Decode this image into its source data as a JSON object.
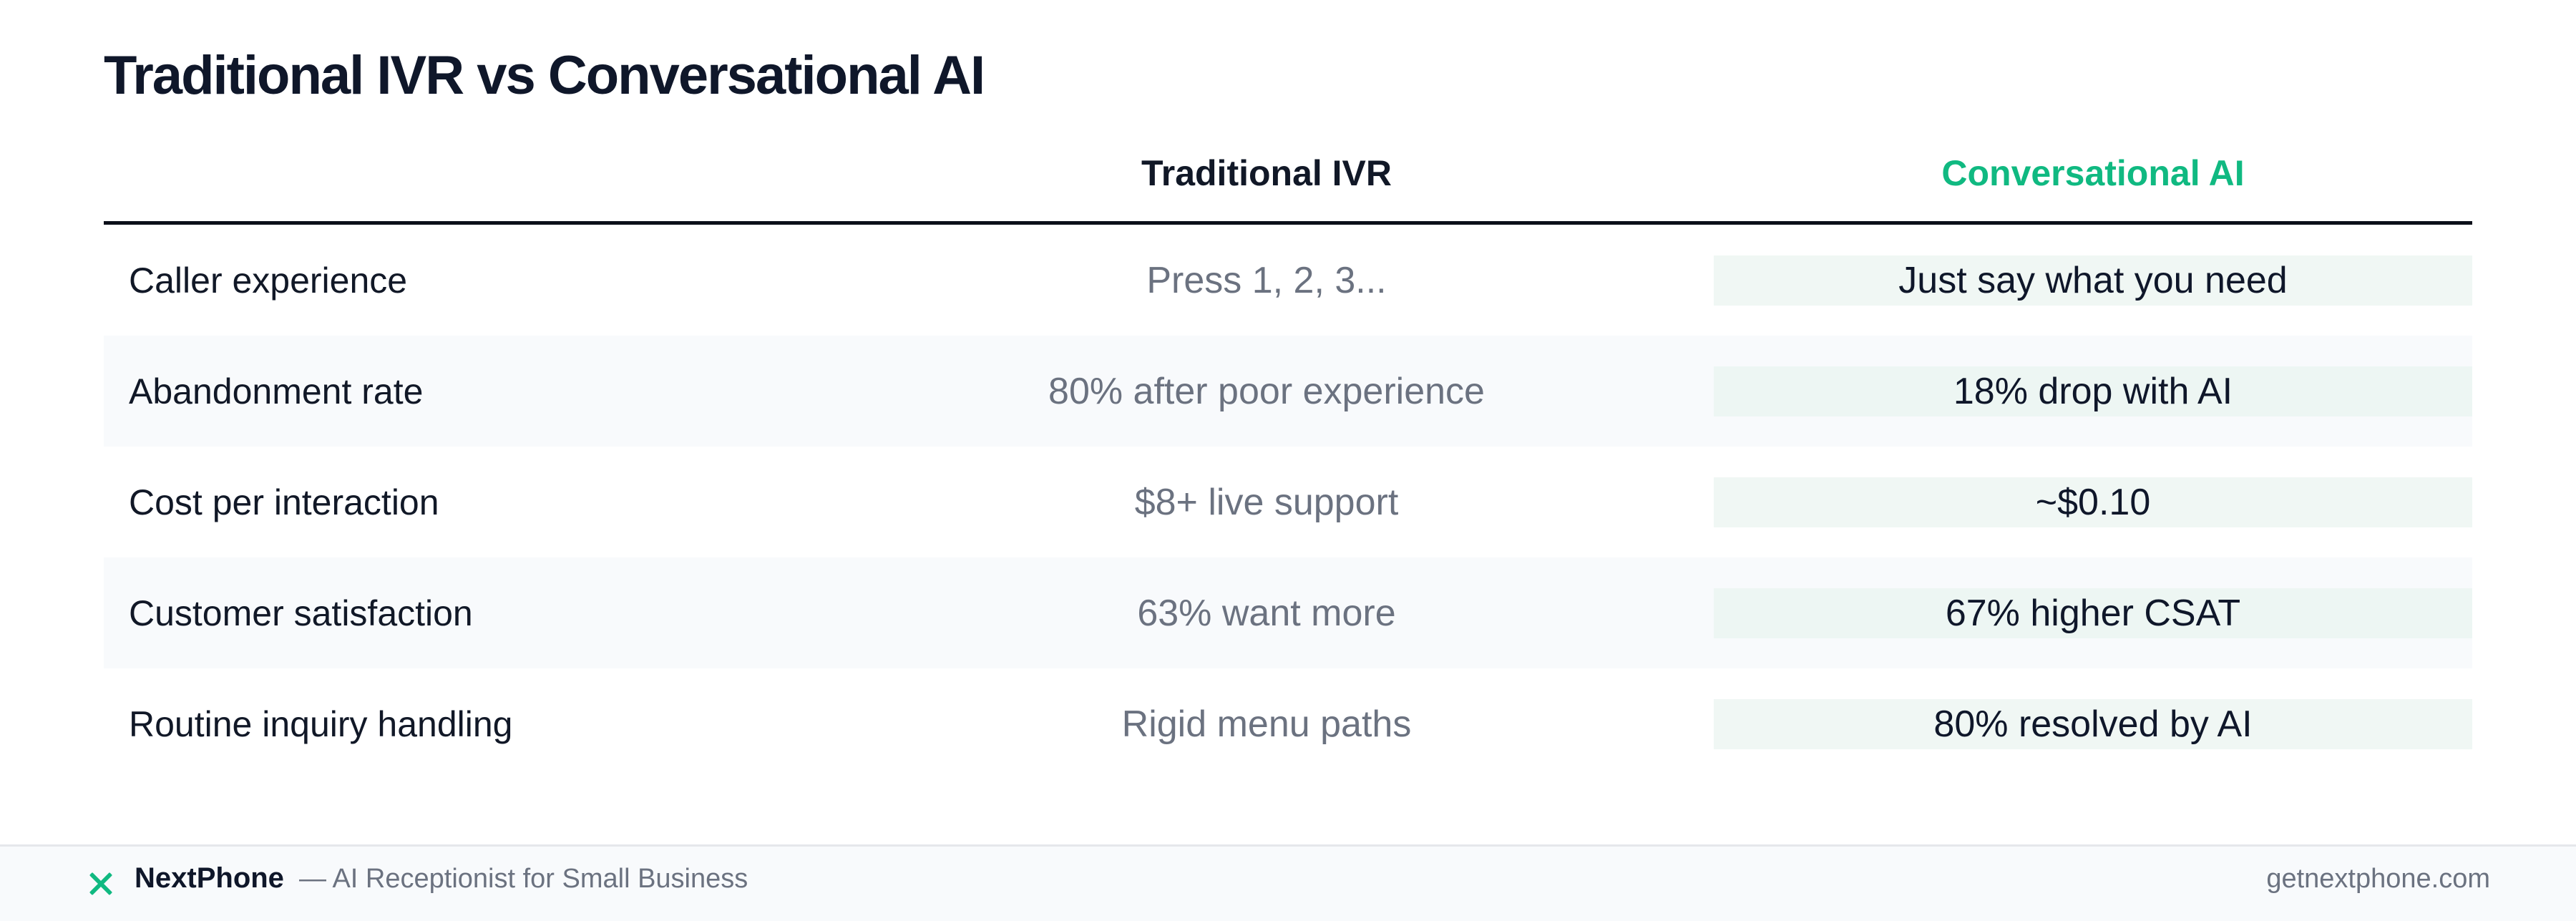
{
  "title": "Traditional IVR vs Conversational AI",
  "table": {
    "columns": [
      "",
      "Traditional IVR",
      "Conversational AI"
    ],
    "rows": [
      {
        "label": "Caller experience",
        "ivr": "Press 1, 2, 3...",
        "ai": "Just say what you need"
      },
      {
        "label": "Abandonment rate",
        "ivr": "80% after poor experience",
        "ai": "18% drop with AI"
      },
      {
        "label": "Cost per interaction",
        "ivr": "$8+ live support",
        "ai": "~$0.10"
      },
      {
        "label": "Customer satisfaction",
        "ivr": "63% want more",
        "ai": "67% higher CSAT"
      },
      {
        "label": "Routine inquiry handling",
        "ivr": "Rigid menu paths",
        "ai": "80% resolved by AI"
      }
    ]
  },
  "footer": {
    "brand": "NextPhone",
    "tagline": "— AI Receptionist for Small Business",
    "site": "getnextphone.com",
    "icon": "brand-x-icon"
  },
  "colors": {
    "accent": "#10b981",
    "text": "#111827",
    "muted": "#6b7280"
  }
}
